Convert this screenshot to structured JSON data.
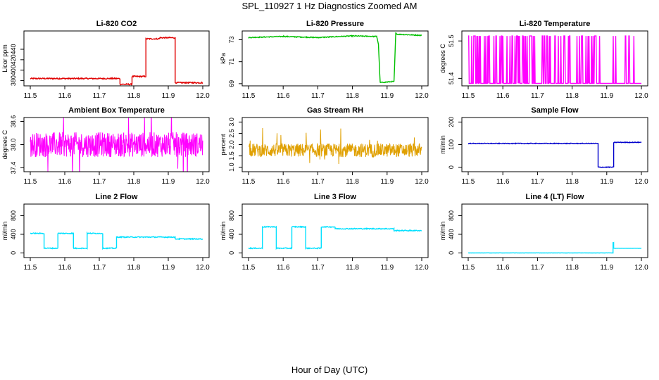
{
  "figure": {
    "title": "SPL_110927  1 Hz Diagnostics Zoomed AM",
    "xlabel": "Hour of Day (UTC)"
  },
  "chart_data": [
    {
      "type": "line",
      "title": "Li-820 CO2",
      "ylabel": "Licor ppm",
      "color": "#e00000",
      "xlim": [
        11.5,
        12.0
      ],
      "ylim": [
        370,
        475
      ],
      "xticks": [
        "11.5",
        "11.6",
        "11.7",
        "11.8",
        "11.9",
        "12.0"
      ],
      "yticks": [
        380,
        400,
        420,
        440
      ],
      "x": [
        11.5,
        11.76,
        11.76,
        11.795,
        11.795,
        11.835,
        11.835,
        11.875,
        11.875,
        11.92,
        11.92,
        12.0
      ],
      "y": [
        384,
        384,
        373,
        373,
        388,
        388,
        460,
        460,
        462,
        462,
        376,
        376
      ],
      "noise": 1.2,
      "style": "line"
    },
    {
      "type": "line",
      "title": "Li-820 Pressure",
      "ylabel": "kPa",
      "color": "#00c000",
      "xlim": [
        11.5,
        12.0
      ],
      "ylim": [
        68.8,
        73.8
      ],
      "xticks": [
        "11.5",
        "11.6",
        "11.7",
        "11.8",
        "11.9",
        "12.0"
      ],
      "yticks": [
        69,
        71,
        73
      ],
      "x": [
        11.5,
        11.6,
        11.7,
        11.8,
        11.87,
        11.875,
        11.88,
        11.92,
        11.925,
        11.93,
        12.0
      ],
      "y": [
        73.2,
        73.3,
        73.2,
        73.35,
        73.3,
        72.6,
        69.1,
        69.2,
        73.6,
        73.5,
        73.4
      ],
      "noise": 0.04,
      "style": "line"
    },
    {
      "type": "line",
      "title": "Li-820 Temperature",
      "ylabel": "degrees C",
      "color": "#ff00ff",
      "xlim": [
        11.5,
        12.0
      ],
      "ylim": [
        51.437,
        51.459
      ],
      "xticks": [
        "11.5",
        "11.6",
        "11.7",
        "11.8",
        "11.9",
        "12.0"
      ],
      "yticks": [
        51.44,
        51.455
      ],
      "low": 51.438,
      "high": 51.457,
      "spike_density": 0.28,
      "spike_end": 11.985,
      "style": "spikes"
    },
    {
      "type": "line",
      "title": "Ambient Box Temperature",
      "ylabel": "degrees C",
      "color": "#ff00ff",
      "xlim": [
        11.5,
        12.0
      ],
      "ylim": [
        37.3,
        38.7
      ],
      "xticks": [
        "11.5",
        "11.6",
        "11.7",
        "11.8",
        "11.9",
        "12.0"
      ],
      "yticks": [
        37.4,
        38.0,
        38.6
      ],
      "x": [
        11.5,
        12.0
      ],
      "y": [
        38.0,
        38.0
      ],
      "noise": 0.32,
      "style": "dense"
    },
    {
      "type": "line",
      "title": "Gas Stream RH",
      "ylabel": "percent",
      "color": "#e0a000",
      "xlim": [
        11.5,
        12.0
      ],
      "ylim": [
        0.8,
        3.2
      ],
      "xticks": [
        "11.5",
        "11.6",
        "11.7",
        "11.8",
        "11.9",
        "12.0"
      ],
      "yticks": [
        1.0,
        1.5,
        2.0,
        2.5,
        3.0
      ],
      "x": [
        11.5,
        12.0
      ],
      "y": [
        1.75,
        1.75
      ],
      "noise": 0.3,
      "style": "dense"
    },
    {
      "type": "line",
      "title": "Sample Flow",
      "ylabel": "ml/min",
      "color": "#0000cc",
      "xlim": [
        11.5,
        12.0
      ],
      "ylim": [
        -20,
        220
      ],
      "xticks": [
        "11.5",
        "11.6",
        "11.7",
        "11.8",
        "11.9",
        "12.0"
      ],
      "yticks": [
        0,
        100,
        200
      ],
      "x": [
        11.5,
        11.875,
        11.875,
        11.92,
        11.92,
        12.0
      ],
      "y": [
        105,
        105,
        0,
        0,
        110,
        110
      ],
      "noise": 1.5,
      "style": "line"
    },
    {
      "type": "line",
      "title": "Line 2 Flow",
      "ylabel": "ml/min",
      "color": "#00e0ff",
      "xlim": [
        11.5,
        12.0
      ],
      "ylim": [
        -100,
        1050
      ],
      "xticks": [
        "11.5",
        "11.6",
        "11.7",
        "11.8",
        "11.9",
        "12.0"
      ],
      "yticks": [
        0,
        400,
        800
      ],
      "x": [
        11.5,
        11.54,
        11.54,
        11.58,
        11.58,
        11.625,
        11.625,
        11.665,
        11.665,
        11.71,
        11.71,
        11.75,
        11.75,
        11.92,
        11.92,
        12.0
      ],
      "y": [
        420,
        420,
        100,
        100,
        420,
        420,
        100,
        100,
        420,
        420,
        100,
        100,
        340,
        340,
        300,
        300
      ],
      "noise": 10,
      "style": "line"
    },
    {
      "type": "line",
      "title": "Line 3 Flow",
      "ylabel": "ml/min",
      "color": "#00e0ff",
      "xlim": [
        11.5,
        12.0
      ],
      "ylim": [
        -100,
        1050
      ],
      "xticks": [
        "11.5",
        "11.6",
        "11.7",
        "11.8",
        "11.9",
        "12.0"
      ],
      "yticks": [
        0,
        400,
        800
      ],
      "x": [
        11.5,
        11.54,
        11.54,
        11.58,
        11.58,
        11.625,
        11.625,
        11.665,
        11.665,
        11.71,
        11.71,
        11.75,
        11.75,
        11.92,
        11.92,
        12.0
      ],
      "y": [
        100,
        100,
        560,
        560,
        100,
        100,
        560,
        560,
        100,
        100,
        560,
        560,
        520,
        520,
        480,
        480
      ],
      "noise": 10,
      "style": "line"
    },
    {
      "type": "line",
      "title": "Line 4 (LT) Flow",
      "ylabel": "ml/min",
      "color": "#00e0ff",
      "xlim": [
        11.5,
        12.0
      ],
      "ylim": [
        -100,
        1050
      ],
      "xticks": [
        "11.5",
        "11.6",
        "11.7",
        "11.8",
        "11.9",
        "12.0"
      ],
      "yticks": [
        0,
        400,
        800
      ],
      "x": [
        11.5,
        11.918,
        11.918,
        11.92,
        11.92,
        11.925,
        11.925,
        12.0
      ],
      "y": [
        0,
        0,
        220,
        220,
        100,
        100,
        100,
        100
      ],
      "noise": 2,
      "style": "line"
    }
  ]
}
